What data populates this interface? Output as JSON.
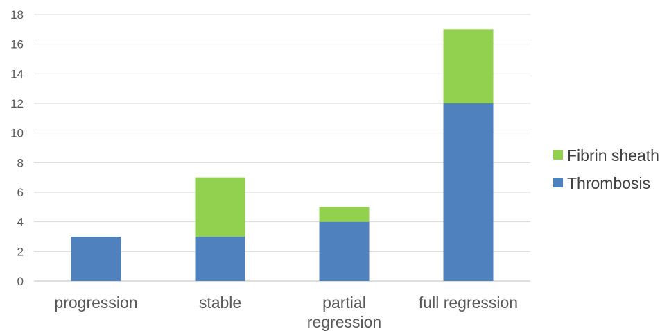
{
  "chart_data": {
    "type": "bar",
    "stacked": true,
    "categories": [
      "progression",
      "stable",
      "partial regression",
      "full regression"
    ],
    "category_lines": [
      [
        "progression"
      ],
      [
        "stable"
      ],
      [
        "partial",
        "regression"
      ],
      [
        "full regression"
      ]
    ],
    "series": [
      {
        "name": "Thrombosis",
        "values": [
          3,
          3,
          4,
          12
        ],
        "color": "#4e81bd"
      },
      {
        "name": "Fibrin sheath",
        "values": [
          0,
          4,
          1,
          5
        ],
        "color": "#92d050"
      }
    ],
    "legend_order": [
      "Fibrin sheath",
      "Thrombosis"
    ],
    "legend_position": "right",
    "ylim": [
      0,
      18
    ],
    "yticks": [
      0,
      2,
      4,
      6,
      8,
      10,
      12,
      14,
      16,
      18
    ],
    "grid": true,
    "title": "",
    "xlabel": "",
    "ylabel": ""
  }
}
